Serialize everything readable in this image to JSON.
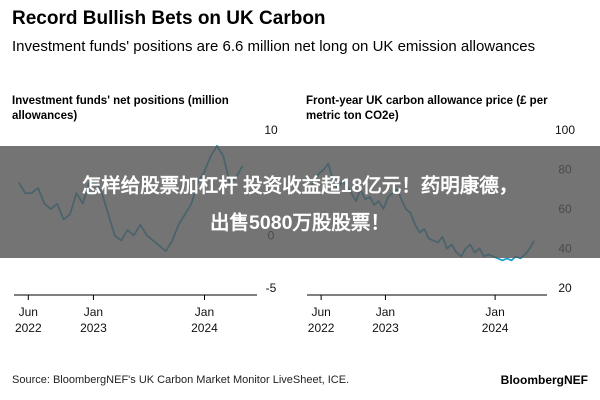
{
  "header": {
    "title": "Record Bullish Bets on UK Carbon",
    "subtitle": "Investment funds' positions are 6.6 million net long on UK emission allowances"
  },
  "banner": {
    "line1": "怎样给股票加杠杆 投资收益超18亿元！药明康德，",
    "line2": "出售5080万股股票！"
  },
  "footer": {
    "source": "Source: BloombergNEF's UK Carbon Market Monitor LiveSheet, ICE.",
    "brand": "BloombergNEF"
  },
  "colors": {
    "line": "#1b9fd0",
    "axis": "#000000"
  },
  "chart_data": [
    {
      "type": "line",
      "title": "Investment funds' net positions (million allowances)",
      "x_ticks": [
        {
          "date": "2022-06-01",
          "label": [
            "Jun",
            "2022"
          ]
        },
        {
          "date": "2023-01-01",
          "label": [
            "Jan",
            "2023"
          ]
        },
        {
          "date": "2024-01-01",
          "label": [
            "Jan",
            "2024"
          ]
        }
      ],
      "xlim": [
        "2022-04-15",
        "2024-06-15"
      ],
      "ylim": [
        -5,
        10
      ],
      "y_ticks": [
        10,
        5,
        0,
        -5
      ],
      "series": [
        {
          "x": [
            "2022-05-01",
            "2022-05-22",
            "2022-06-12",
            "2022-07-03",
            "2022-07-24",
            "2022-08-14",
            "2022-09-04",
            "2022-09-25",
            "2022-10-16",
            "2022-11-06",
            "2022-11-27",
            "2022-12-18",
            "2023-01-08",
            "2023-01-29",
            "2023-02-19",
            "2023-03-12",
            "2023-04-02",
            "2023-04-23",
            "2023-05-14",
            "2023-06-04",
            "2023-06-25",
            "2023-07-16",
            "2023-08-06",
            "2023-08-27",
            "2023-09-17",
            "2023-10-08",
            "2023-10-29",
            "2023-11-19",
            "2023-12-10",
            "2023-12-31",
            "2024-01-21",
            "2024-02-11",
            "2024-03-03",
            "2024-03-24",
            "2024-04-14",
            "2024-05-05"
          ],
          "y": [
            5,
            4,
            4,
            4.5,
            3,
            2.5,
            3,
            1.5,
            2,
            4,
            3,
            5,
            5,
            4,
            2,
            0,
            -0.5,
            0.5,
            0,
            1,
            0,
            -0.5,
            -1,
            -1.5,
            -0.5,
            1,
            2,
            3,
            5,
            6,
            7.5,
            8.5,
            7.5,
            5,
            5.5,
            6.6
          ]
        }
      ]
    },
    {
      "type": "line",
      "title": "Front-year UK carbon allowance price (£ per metric ton CO2e)",
      "x_ticks": [
        {
          "date": "2022-06-01",
          "label": [
            "Jun",
            "2022"
          ]
        },
        {
          "date": "2023-01-01",
          "label": [
            "Jan",
            "2023"
          ]
        },
        {
          "date": "2024-01-01",
          "label": [
            "Jan",
            "2024"
          ]
        }
      ],
      "xlim": [
        "2022-04-15",
        "2024-06-15"
      ],
      "ylim": [
        20,
        100
      ],
      "y_ticks": [
        100,
        80,
        60,
        40,
        20
      ],
      "series": [
        {
          "x": [
            "2022-05-01",
            "2022-05-10",
            "2022-05-25",
            "2022-06-10",
            "2022-06-25",
            "2022-07-10",
            "2022-07-25",
            "2022-08-10",
            "2022-08-25",
            "2022-09-10",
            "2022-09-25",
            "2022-10-10",
            "2022-10-25",
            "2022-11-10",
            "2022-11-25",
            "2022-12-10",
            "2022-12-25",
            "2023-01-10",
            "2023-01-25",
            "2023-02-10",
            "2023-02-25",
            "2023-03-10",
            "2023-03-25",
            "2023-04-10",
            "2023-04-25",
            "2023-05-10",
            "2023-05-25",
            "2023-06-10",
            "2023-06-25",
            "2023-07-10",
            "2023-07-25",
            "2023-08-10",
            "2023-08-25",
            "2023-09-10",
            "2023-09-25",
            "2023-10-10",
            "2023-10-25",
            "2023-11-10",
            "2023-11-25",
            "2023-12-10",
            "2023-12-25",
            "2024-01-10",
            "2024-01-25",
            "2024-02-10",
            "2024-02-25",
            "2024-03-10",
            "2024-03-25",
            "2024-04-10",
            "2024-04-25",
            "2024-05-10"
          ],
          "y": [
            72,
            75,
            78,
            80,
            83,
            75,
            70,
            74,
            72,
            68,
            64,
            70,
            65,
            66,
            62,
            64,
            60,
            66,
            68,
            70,
            64,
            60,
            58,
            52,
            48,
            50,
            45,
            44,
            43,
            46,
            40,
            42,
            38,
            36,
            40,
            42,
            38,
            40,
            36,
            37,
            36,
            35,
            34,
            35,
            34,
            36,
            35,
            37,
            40,
            44
          ]
        }
      ]
    }
  ]
}
